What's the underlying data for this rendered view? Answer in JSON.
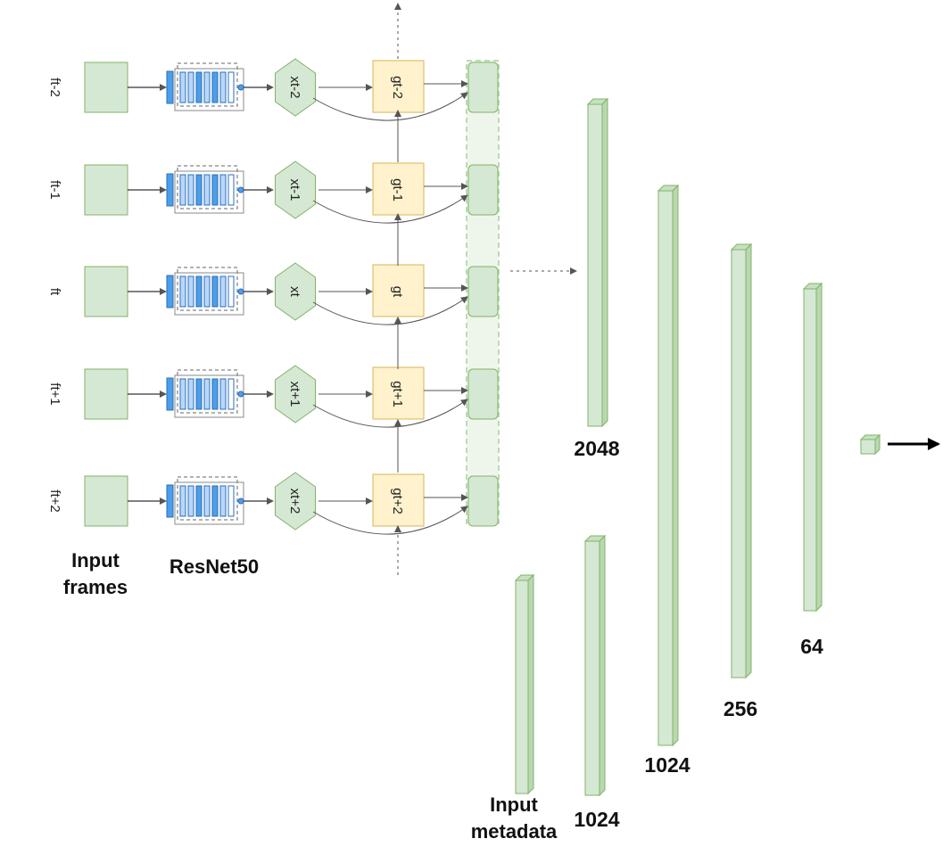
{
  "rows": [
    {
      "frame_label": "ft-2",
      "x_label": "xt-2",
      "g_label": "gt-2"
    },
    {
      "frame_label": "ft-1",
      "x_label": "xt-1",
      "g_label": "gt-1"
    },
    {
      "frame_label": "ft",
      "x_label": "xt",
      "g_label": "gt"
    },
    {
      "frame_label": "ft+1",
      "x_label": "xt+1",
      "g_label": "gt+1"
    },
    {
      "frame_label": "ft+2",
      "x_label": "xt+2",
      "g_label": "gt+2"
    }
  ],
  "captions": {
    "input_frames_line1": "Input",
    "input_frames_line2": "frames",
    "resnet": "ResNet50",
    "input_metadata_line1": "Input",
    "input_metadata_line2": "metadata"
  },
  "layers": {
    "video_2048": "2048",
    "meta_1024_a": "1024",
    "merged_1024": "1024",
    "merged_256": "256",
    "merged_64": "64"
  },
  "colors": {
    "green_fill": "#d5e8d4",
    "green_stroke": "#82b366",
    "yellow_fill": "#fff2cc",
    "yellow_stroke": "#d6b656",
    "blue_dark": "#4d9ee8",
    "blue_light": "#b9d7fb",
    "arrow": "#555555"
  }
}
